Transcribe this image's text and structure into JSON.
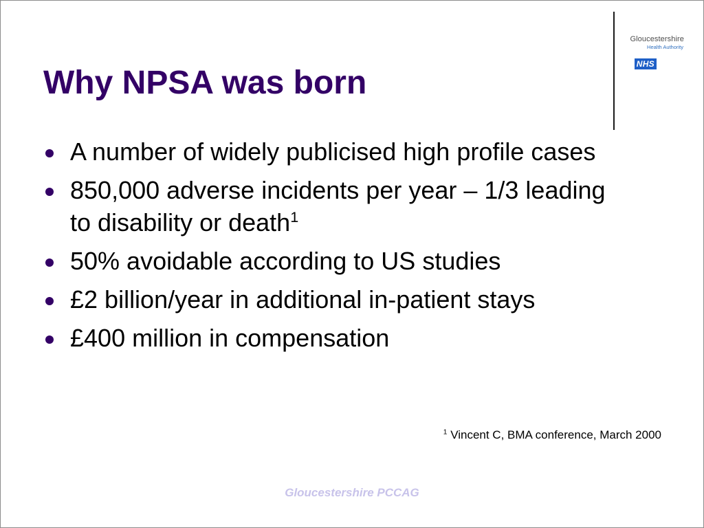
{
  "logo": {
    "org": "Gloucestershire",
    "sub": "Health Authority",
    "badge": "NHS"
  },
  "title": "Why NPSA was born",
  "bullets": [
    {
      "text": "A number of widely publicised high profile cases",
      "superscript": ""
    },
    {
      "text": "850,000 adverse incidents per year – 1/3 leading to disability or death",
      "superscript": "1"
    },
    {
      "text": "50% avoidable according to US studies",
      "superscript": ""
    },
    {
      "text": "£2 billion/year in additional in-patient stays",
      "superscript": ""
    },
    {
      "text": "£400 million in compensation",
      "superscript": ""
    }
  ],
  "footnote": {
    "marker": "1",
    "text": " Vincent C, BMA conference, March 2000"
  },
  "footer": "Gloucestershire PCCAG",
  "colors": {
    "title": "#330066",
    "bullet": "#330066",
    "footer": "#c8c3ea",
    "nhs_blue": "#1e5fc7"
  }
}
